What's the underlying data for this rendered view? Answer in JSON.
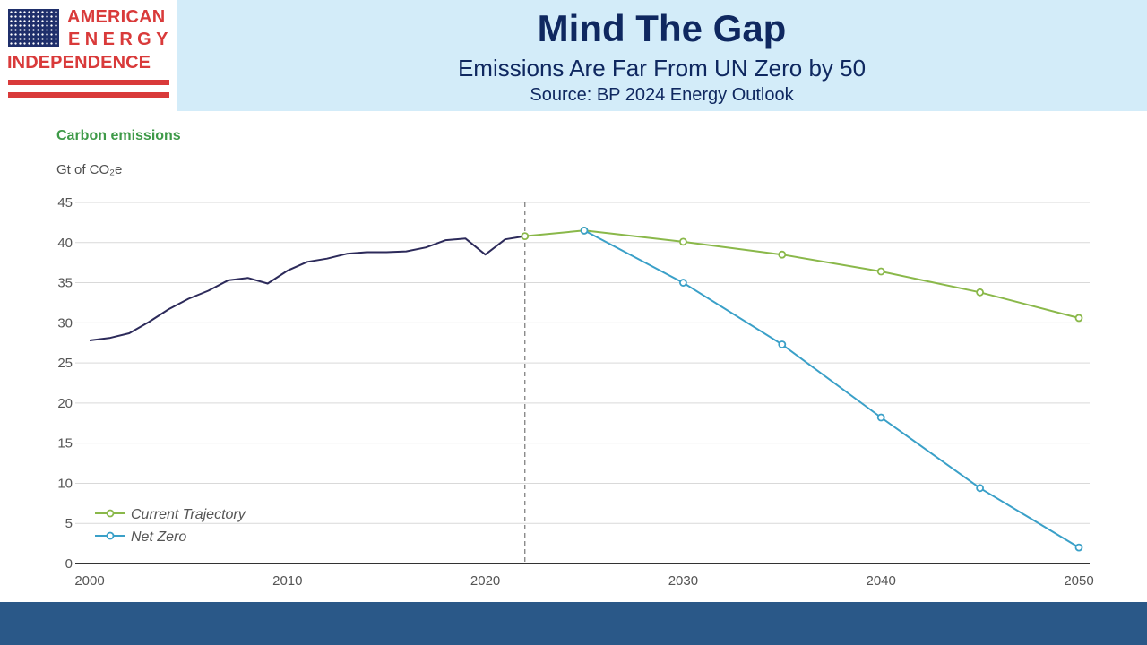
{
  "header": {
    "title": "Mind The Gap",
    "subtitle": "Emissions Are Far From UN Zero by 50",
    "source": "Source: BP 2024 Energy Outlook",
    "background_color": "#d3ecf9",
    "text_color": "#0f2860"
  },
  "logo": {
    "line1": "AMERICAN",
    "line2": "ENERGY",
    "line3": "INDEPENDENCE",
    "flag_icon": "us-flag-icon",
    "color": "#d93a3a"
  },
  "chart_data": {
    "type": "line",
    "title": "Carbon emissions",
    "ylabel": "Gt of CO₂e",
    "xlabel": "",
    "xlim": [
      2000,
      2050
    ],
    "ylim": [
      0,
      45
    ],
    "xticks": [
      2000,
      2010,
      2020,
      2030,
      2040,
      2050
    ],
    "yticks": [
      0,
      5,
      10,
      15,
      20,
      25,
      30,
      35,
      40,
      45
    ],
    "grid": "horizontal",
    "forecast_divider_x": 2022,
    "legend_position": "bottom-left",
    "series": [
      {
        "name": "",
        "color": "#2c2a5a",
        "markers": false,
        "x": [
          2000,
          2001,
          2002,
          2003,
          2004,
          2005,
          2006,
          2007,
          2008,
          2009,
          2010,
          2011,
          2012,
          2013,
          2014,
          2015,
          2016,
          2017,
          2018,
          2019,
          2020,
          2021,
          2022
        ],
        "y": [
          27.8,
          28.1,
          28.7,
          30.1,
          31.7,
          33.0,
          34.0,
          35.3,
          35.6,
          34.9,
          36.5,
          37.6,
          38.0,
          38.6,
          38.8,
          38.8,
          38.9,
          39.4,
          40.3,
          40.5,
          38.5,
          40.4,
          40.8
        ]
      },
      {
        "name": "Current Trajectory",
        "color": "#8ab84a",
        "markers": true,
        "x": [
          2022,
          2025,
          2030,
          2035,
          2040,
          2045,
          2050
        ],
        "y": [
          40.8,
          41.5,
          40.1,
          38.5,
          36.4,
          33.8,
          30.6
        ]
      },
      {
        "name": "Net Zero",
        "color": "#3aa0c8",
        "markers": true,
        "x": [
          2025,
          2030,
          2035,
          2040,
          2045,
          2050
        ],
        "y": [
          41.5,
          35.0,
          27.3,
          18.2,
          9.4,
          2.0
        ]
      }
    ]
  },
  "footer": {
    "background_color": "#2a5888"
  }
}
